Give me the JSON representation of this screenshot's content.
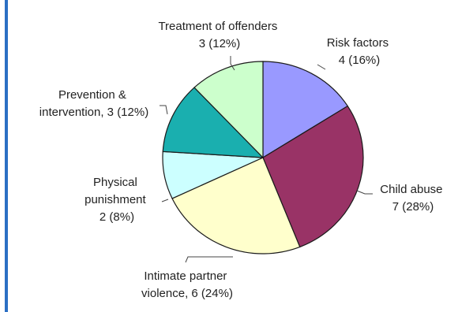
{
  "chart_data": {
    "type": "pie",
    "title": "",
    "slices": [
      {
        "label": "Risk factors",
        "value_text": "4 (16%)",
        "count": 4,
        "percent": 16,
        "color": "#9999ff"
      },
      {
        "label": "Child abuse",
        "value_text": "7 (28%)",
        "count": 7,
        "percent": 28,
        "color": "#993366"
      },
      {
        "label": "Intimate partner violence, 6 (24%)",
        "value_text": "",
        "count": 6,
        "percent": 24,
        "color": "#ffffcc"
      },
      {
        "label": "Physical punishment",
        "value_text": "2 (8%)",
        "count": 2,
        "percent": 8,
        "color": "#ccffff"
      },
      {
        "label": "Prevention & intervention, 3 (12%)",
        "value_text": "",
        "count": 3,
        "percent": 12,
        "color": "#1aafaf"
      },
      {
        "label": "Treatment of offenders",
        "value_text": "3 (12%)",
        "count": 3,
        "percent": 12,
        "color": "#ccffcc"
      }
    ],
    "start_angle_deg": 0,
    "direction": "clockwise",
    "legend": "none"
  },
  "labels": {
    "risk": [
      "Risk factors",
      "4 (16%)"
    ],
    "child": [
      "Child abuse",
      "7 (28%)"
    ],
    "ipv": [
      "Intimate partner",
      "violence, 6 (24%)"
    ],
    "phys": [
      "Physical",
      "punishment",
      "2 (8%)"
    ],
    "prev": [
      "Prevention &",
      "intervention, 3 (12%)"
    ],
    "treat": [
      "Treatment of offenders",
      "3 (12%)"
    ]
  },
  "colors": {
    "border": "#2b6fc4",
    "outline": "#1a1a1a",
    "text": "#222222"
  }
}
